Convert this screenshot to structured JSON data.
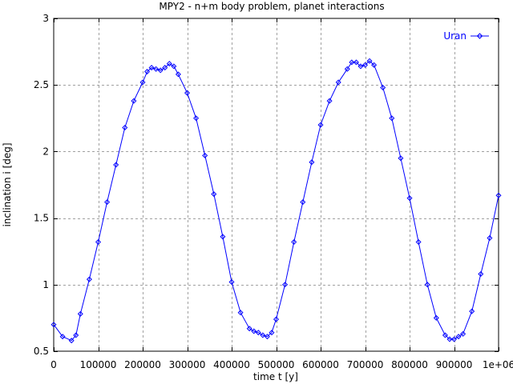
{
  "chart_data": {
    "type": "line",
    "title": "MPY2 - n+m body problem, planet interactions",
    "xlabel": "time t [y]",
    "ylabel": "inclination i [deg]",
    "xlim": [
      0,
      1000000
    ],
    "ylim": [
      0.5,
      3
    ],
    "xticks": [
      0,
      100000,
      200000,
      300000,
      400000,
      500000,
      600000,
      700000,
      800000,
      900000,
      1000000
    ],
    "xtick_labels": [
      "0",
      "100000",
      "200000",
      "300000",
      "400000",
      "500000",
      "600000",
      "700000",
      "800000",
      "900000",
      "1e+06"
    ],
    "yticks": [
      0.5,
      1,
      1.5,
      2,
      2.5,
      3
    ],
    "ytick_labels": [
      "0.5",
      "1",
      "1.5",
      "2",
      "2.5",
      "3"
    ],
    "grid": true,
    "legend_position": "top-right",
    "color": "#0000ff",
    "marker": "diamond",
    "series": [
      {
        "name": "Uran",
        "x": [
          0,
          20000,
          40000,
          50000,
          60000,
          80000,
          100000,
          120000,
          140000,
          160000,
          180000,
          200000,
          210000,
          220000,
          230000,
          240000,
          250000,
          260000,
          270000,
          280000,
          300000,
          320000,
          340000,
          360000,
          380000,
          400000,
          420000,
          440000,
          450000,
          460000,
          470000,
          480000,
          490000,
          500000,
          520000,
          540000,
          560000,
          580000,
          600000,
          620000,
          640000,
          660000,
          670000,
          680000,
          690000,
          700000,
          710000,
          720000,
          740000,
          760000,
          780000,
          800000,
          820000,
          840000,
          860000,
          880000,
          890000,
          900000,
          910000,
          920000,
          940000,
          960000,
          980000,
          1000000
        ],
        "y": [
          0.7,
          0.61,
          0.58,
          0.62,
          0.78,
          1.04,
          1.32,
          1.62,
          1.9,
          2.18,
          2.38,
          2.52,
          2.6,
          2.63,
          2.62,
          2.61,
          2.63,
          2.66,
          2.64,
          2.58,
          2.44,
          2.25,
          1.97,
          1.68,
          1.36,
          1.02,
          0.79,
          0.67,
          0.65,
          0.64,
          0.62,
          0.61,
          0.64,
          0.74,
          1.0,
          1.32,
          1.62,
          1.92,
          2.2,
          2.38,
          2.52,
          2.62,
          2.67,
          2.67,
          2.64,
          2.65,
          2.68,
          2.65,
          2.48,
          2.25,
          1.95,
          1.65,
          1.32,
          1.0,
          0.75,
          0.62,
          0.59,
          0.59,
          0.61,
          0.63,
          0.8,
          1.08,
          1.35,
          1.67
        ]
      }
    ]
  }
}
